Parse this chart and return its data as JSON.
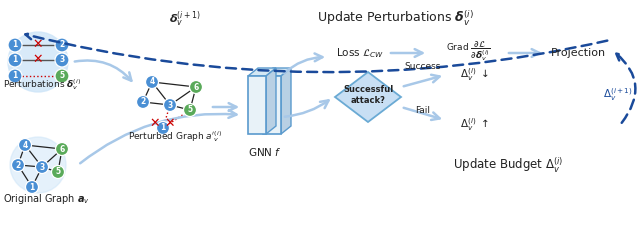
{
  "bg_color": "#ffffff",
  "light_blue": "#a8c8e8",
  "blue_arrow": "#7aacd4",
  "dark_blue_dot": "#1a4a9a",
  "node_blue": "#4a8fd4",
  "node_green": "#5aaa5a",
  "red_x": "#cc0000",
  "diamond_fill": "#c8dff4",
  "diamond_edge": "#6aaad4",
  "gnn_fill_front": "#e8f0f8",
  "gnn_fill_back": "#c0d4e8",
  "gnn_fill_side": "#b0c4d8",
  "gnn_fill_top": "#d8e8f4",
  "gnn_edge": "#5a9acd",
  "text_dark": "#222222",
  "title": "Update Perturbations $\\boldsymbol{\\delta}_v^{(i)}$",
  "update_budget_label": "Update Budget $\\Delta_v^{(i)}$",
  "delta_v_i1_label": "$\\boldsymbol{\\delta}_v^{(i+1)}$",
  "Delta_v_i1_label": "$\\Delta_v^{(i+1)}$"
}
